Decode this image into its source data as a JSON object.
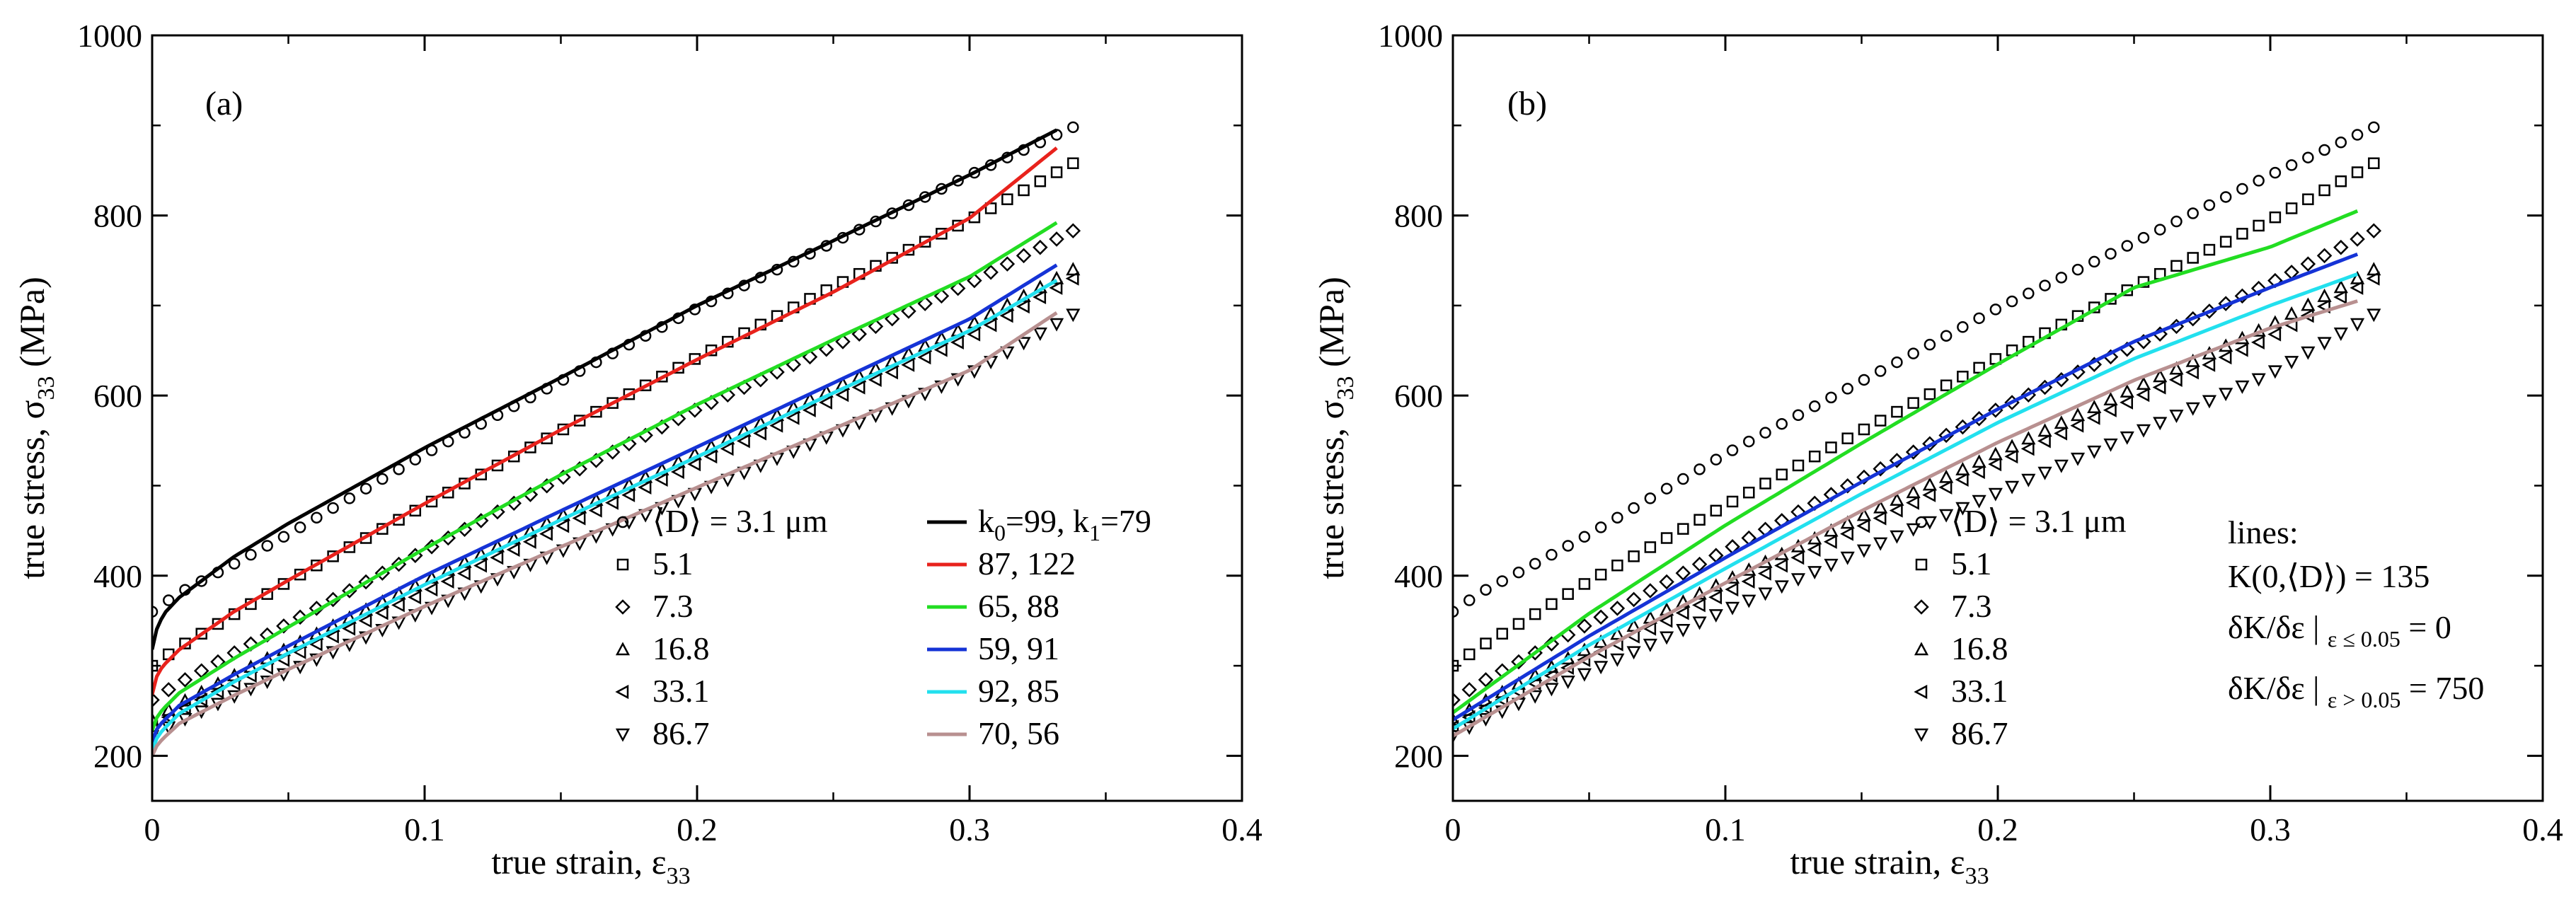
{
  "chart_data": [
    {
      "type": "line",
      "panel_label": "(a)",
      "xlabel": "true strain, ε33",
      "ylabel": "true stress, σ33 (MPa)",
      "xlim": [
        0,
        0.4
      ],
      "ylim": [
        150,
        1000
      ],
      "xticks": [
        "0",
        "0.1",
        "0.2",
        "0.3",
        "0.4"
      ],
      "yticks": [
        "200",
        "400",
        "600",
        "800",
        "1000"
      ],
      "grid": false,
      "legend_position": "bottom-right",
      "scatter_series": [
        {
          "label": "⟨D⟩ = 3.1 μm",
          "marker": "circle",
          "x_max": 0.338,
          "points": [
            [
              0,
              360
            ],
            [
              0.01,
              381
            ],
            [
              0.03,
              413
            ],
            [
              0.05,
              446
            ],
            [
              0.1,
              535
            ],
            [
              0.15,
              616
            ],
            [
              0.2,
              697
            ],
            [
              0.25,
              770
            ],
            [
              0.3,
              845
            ],
            [
              0.338,
              898
            ]
          ]
        },
        {
          "label": "5.1",
          "marker": "square",
          "x_max": 0.338,
          "points": [
            [
              0,
              300
            ],
            [
              0.01,
              321
            ],
            [
              0.03,
              357
            ],
            [
              0.05,
              394
            ],
            [
              0.1,
              478
            ],
            [
              0.15,
              561
            ],
            [
              0.2,
              642
            ],
            [
              0.25,
              721
            ],
            [
              0.3,
              795
            ],
            [
              0.338,
              858
            ]
          ]
        },
        {
          "label": "7.3",
          "marker": "diamond",
          "x_max": 0.338,
          "points": [
            [
              0,
              262
            ],
            [
              0.01,
              281
            ],
            [
              0.03,
              314
            ],
            [
              0.05,
              347
            ],
            [
              0.1,
              428
            ],
            [
              0.15,
              508
            ],
            [
              0.2,
              585
            ],
            [
              0.25,
              655
            ],
            [
              0.3,
              725
            ],
            [
              0.338,
              783
            ]
          ]
        },
        {
          "label": "16.8",
          "marker": "triangle-up",
          "x_max": 0.338,
          "points": [
            [
              0,
              240
            ],
            [
              0.01,
              258
            ],
            [
              0.03,
              289
            ],
            [
              0.05,
              320
            ],
            [
              0.1,
              394
            ],
            [
              0.15,
              466
            ],
            [
              0.2,
              536
            ],
            [
              0.25,
              608
            ],
            [
              0.3,
              678
            ],
            [
              0.338,
              740
            ]
          ]
        },
        {
          "label": "33.1",
          "marker": "triangle-left",
          "x_max": 0.338,
          "points": [
            [
              0,
              232
            ],
            [
              0.01,
              250
            ],
            [
              0.03,
              280
            ],
            [
              0.05,
              309
            ],
            [
              0.1,
              381
            ],
            [
              0.15,
              454
            ],
            [
              0.2,
              525
            ],
            [
              0.25,
              596
            ],
            [
              0.3,
              665
            ],
            [
              0.338,
              730
            ]
          ]
        },
        {
          "label": "86.7",
          "marker": "triangle-down",
          "x_max": 0.338,
          "points": [
            [
              0,
              222
            ],
            [
              0.01,
              238
            ],
            [
              0.03,
              266
            ],
            [
              0.05,
              293
            ],
            [
              0.1,
              361
            ],
            [
              0.15,
              427
            ],
            [
              0.2,
              492
            ],
            [
              0.25,
              557
            ],
            [
              0.3,
              624
            ],
            [
              0.338,
              690
            ]
          ]
        }
      ],
      "line_series": [
        {
          "label": "k0=99, k1=79",
          "label_main": "k",
          "label_sub0": "0",
          "label_mid": "=99, k",
          "label_sub1": "1",
          "label_end": "=79",
          "color": "#000000",
          "points": [
            [
              0,
              318
            ],
            [
              0.002,
              345
            ],
            [
              0.005,
              360
            ],
            [
              0.01,
              376
            ],
            [
              0.03,
              421
            ],
            [
              0.05,
              458
            ],
            [
              0.1,
              542
            ],
            [
              0.15,
              620
            ],
            [
              0.2,
              700
            ],
            [
              0.25,
              772
            ],
            [
              0.3,
              845
            ],
            [
              0.332,
              895
            ]
          ]
        },
        {
          "label": "87, 122",
          "color": "#e8221c",
          "points": [
            [
              0,
              268
            ],
            [
              0.002,
              292
            ],
            [
              0.005,
              303
            ],
            [
              0.01,
              318
            ],
            [
              0.03,
              360
            ],
            [
              0.05,
              395
            ],
            [
              0.1,
              480
            ],
            [
              0.15,
              562
            ],
            [
              0.2,
              640
            ],
            [
              0.25,
              715
            ],
            [
              0.3,
              797
            ],
            [
              0.332,
              875
            ]
          ]
        },
        {
          "label": "65, 88",
          "color": "#22dd22",
          "points": [
            [
              0,
              228
            ],
            [
              0.002,
              245
            ],
            [
              0.005,
              255
            ],
            [
              0.01,
              270
            ],
            [
              0.03,
              308
            ],
            [
              0.05,
              343
            ],
            [
              0.1,
              430
            ],
            [
              0.15,
              512
            ],
            [
              0.2,
              590
            ],
            [
              0.25,
              662
            ],
            [
              0.3,
              732
            ],
            [
              0.332,
              792
            ]
          ]
        },
        {
          "label": "59, 91",
          "color": "#1533d6",
          "points": [
            [
              0,
              215
            ],
            [
              0.002,
              232
            ],
            [
              0.005,
              241
            ],
            [
              0.01,
              256
            ],
            [
              0.03,
              290
            ],
            [
              0.05,
              322
            ],
            [
              0.1,
              400
            ],
            [
              0.15,
              472
            ],
            [
              0.2,
              543
            ],
            [
              0.25,
              614
            ],
            [
              0.3,
              685
            ],
            [
              0.332,
              745
            ]
          ]
        },
        {
          "label": "92, 85",
          "color": "#22e0ee",
          "points": [
            [
              0,
              205
            ],
            [
              0.002,
              222
            ],
            [
              0.005,
              232
            ],
            [
              0.01,
              247
            ],
            [
              0.03,
              282
            ],
            [
              0.05,
              314
            ],
            [
              0.1,
              390
            ],
            [
              0.15,
              462
            ],
            [
              0.2,
              532
            ],
            [
              0.25,
              603
            ],
            [
              0.3,
              672
            ],
            [
              0.332,
              728
            ]
          ]
        },
        {
          "label": "70, 56",
          "color": "#b89090",
          "points": [
            [
              0,
              200
            ],
            [
              0.002,
              213
            ],
            [
              0.005,
              222
            ],
            [
              0.01,
              236
            ],
            [
              0.03,
              267
            ],
            [
              0.05,
              296
            ],
            [
              0.1,
              366
            ],
            [
              0.15,
              432
            ],
            [
              0.2,
              498
            ],
            [
              0.25,
              563
            ],
            [
              0.3,
              628
            ],
            [
              0.332,
              692
            ]
          ]
        }
      ]
    },
    {
      "type": "line",
      "panel_label": "(b)",
      "xlabel": "true strain, ε33",
      "ylabel": "true stress, σ33 (MPa)",
      "xlim": [
        0,
        0.4
      ],
      "ylim": [
        150,
        1000
      ],
      "xticks": [
        "0",
        "0.1",
        "0.2",
        "0.3",
        "0.4"
      ],
      "yticks": [
        "200",
        "400",
        "600",
        "800",
        "1000"
      ],
      "grid": false,
      "legend_position": "bottom-right",
      "scatter_series": [
        {
          "label": "⟨D⟩ = 3.1 μm",
          "marker": "circle",
          "x_max": 0.338,
          "points": [
            [
              0,
              360
            ],
            [
              0.01,
              381
            ],
            [
              0.03,
              413
            ],
            [
              0.05,
              446
            ],
            [
              0.1,
              535
            ],
            [
              0.15,
              616
            ],
            [
              0.2,
              697
            ],
            [
              0.25,
              770
            ],
            [
              0.3,
              845
            ],
            [
              0.338,
              898
            ]
          ]
        },
        {
          "label": "5.1",
          "marker": "square",
          "x_max": 0.338,
          "points": [
            [
              0,
              300
            ],
            [
              0.01,
              321
            ],
            [
              0.03,
              357
            ],
            [
              0.05,
              394
            ],
            [
              0.1,
              478
            ],
            [
              0.15,
              561
            ],
            [
              0.2,
              642
            ],
            [
              0.25,
              721
            ],
            [
              0.3,
              795
            ],
            [
              0.338,
              858
            ]
          ]
        },
        {
          "label": "7.3",
          "marker": "diamond",
          "x_max": 0.338,
          "points": [
            [
              0,
              262
            ],
            [
              0.01,
              281
            ],
            [
              0.03,
              314
            ],
            [
              0.05,
              347
            ],
            [
              0.1,
              428
            ],
            [
              0.15,
              508
            ],
            [
              0.2,
              585
            ],
            [
              0.25,
              655
            ],
            [
              0.3,
              725
            ],
            [
              0.338,
              783
            ]
          ]
        },
        {
          "label": "16.8",
          "marker": "triangle-up",
          "x_max": 0.338,
          "points": [
            [
              0,
              240
            ],
            [
              0.01,
              258
            ],
            [
              0.03,
              289
            ],
            [
              0.05,
              320
            ],
            [
              0.1,
              394
            ],
            [
              0.15,
              466
            ],
            [
              0.2,
              536
            ],
            [
              0.25,
              608
            ],
            [
              0.3,
              678
            ],
            [
              0.338,
              740
            ]
          ]
        },
        {
          "label": "33.1",
          "marker": "triangle-left",
          "x_max": 0.338,
          "points": [
            [
              0,
              232
            ],
            [
              0.01,
              250
            ],
            [
              0.03,
              280
            ],
            [
              0.05,
              309
            ],
            [
              0.1,
              381
            ],
            [
              0.15,
              454
            ],
            [
              0.2,
              525
            ],
            [
              0.25,
              596
            ],
            [
              0.3,
              665
            ],
            [
              0.338,
              730
            ]
          ]
        },
        {
          "label": "86.7",
          "marker": "triangle-down",
          "x_max": 0.338,
          "points": [
            [
              0,
              222
            ],
            [
              0.01,
              238
            ],
            [
              0.03,
              266
            ],
            [
              0.05,
              293
            ],
            [
              0.1,
              361
            ],
            [
              0.15,
              427
            ],
            [
              0.2,
              492
            ],
            [
              0.25,
              557
            ],
            [
              0.3,
              624
            ],
            [
              0.338,
              690
            ]
          ]
        }
      ],
      "line_series": [
        {
          "color": "#22dd22",
          "points": [
            [
              0,
              248
            ],
            [
              0.05,
              358
            ],
            [
              0.1,
              456
            ],
            [
              0.15,
              547
            ],
            [
              0.2,
              635
            ],
            [
              0.25,
              720
            ],
            [
              0.3,
              765
            ],
            [
              0.332,
              805
            ]
          ]
        },
        {
          "color": "#1533d6",
          "points": [
            [
              0,
              240
            ],
            [
              0.05,
              333
            ],
            [
              0.1,
              420
            ],
            [
              0.15,
              504
            ],
            [
              0.2,
              585
            ],
            [
              0.25,
              660
            ],
            [
              0.3,
              720
            ],
            [
              0.332,
              757
            ]
          ]
        },
        {
          "color": "#22e0ee",
          "points": [
            [
              0,
              230
            ],
            [
              0.05,
              323
            ],
            [
              0.1,
              408
            ],
            [
              0.15,
              491
            ],
            [
              0.2,
              570
            ],
            [
              0.25,
              641
            ],
            [
              0.3,
              700
            ],
            [
              0.332,
              735
            ]
          ]
        },
        {
          "color": "#b89090",
          "points": [
            [
              0,
              222
            ],
            [
              0.05,
              310
            ],
            [
              0.1,
              392
            ],
            [
              0.15,
              472
            ],
            [
              0.2,
              548
            ],
            [
              0.25,
              617
            ],
            [
              0.3,
              675
            ],
            [
              0.332,
              705
            ]
          ]
        }
      ],
      "annotation": {
        "title": "lines:",
        "line1": "K(0,⟨D⟩) = 135",
        "line2_main": "δK/δε",
        "line2_sub": "ε ≤ 0.05",
        "line2_value": "= 0",
        "line3_main": "δK/δε",
        "line3_sub": "ε > 0.05",
        "line3_value": "= 750"
      }
    }
  ]
}
